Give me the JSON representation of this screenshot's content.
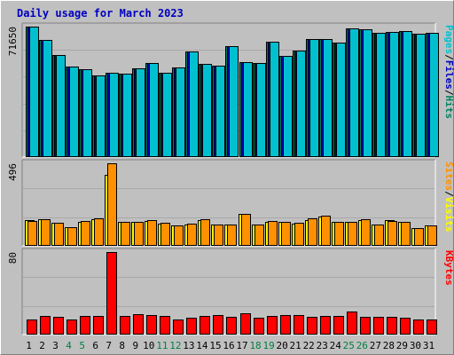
{
  "title": "Daily usage for March 2023",
  "colors": {
    "background": "#c0c0c0",
    "plot_background": "#c0c0c0",
    "title": "#0000c0",
    "pages": "#00c0d0",
    "files": "#0000c0",
    "hits": "#008060",
    "visits": "#ffff00",
    "sites": "#ff9000",
    "kbytes": "#ff0000",
    "day_weekday": "#000000",
    "day_weekend": "#008040",
    "separator": "#000000"
  },
  "chart_data": [
    {
      "type": "bar",
      "panel": "hits_files_pages",
      "max_label": "71650",
      "ylim": [
        0,
        71650
      ],
      "right_label": {
        "parts": [
          "Pages",
          "Files",
          "Hits"
        ],
        "separator": "/"
      },
      "categories": [
        "1",
        "2",
        "3",
        "4",
        "5",
        "6",
        "7",
        "8",
        "9",
        "10",
        "11",
        "12",
        "13",
        "14",
        "15",
        "16",
        "17",
        "18",
        "19",
        "20",
        "21",
        "22",
        "23",
        "24",
        "25",
        "26",
        "27",
        "28",
        "29",
        "30",
        "31"
      ],
      "weekend_days": [
        "4",
        "5",
        "11",
        "12",
        "18",
        "19",
        "25",
        "26"
      ],
      "series": [
        {
          "name": "Hits",
          "color": "#008060",
          "values": [
            71650,
            64100,
            56000,
            49800,
            48400,
            45000,
            46400,
            45700,
            48600,
            51600,
            46300,
            49400,
            58200,
            51200,
            50400,
            61100,
            52300,
            51900,
            63500,
            55700,
            58700,
            64600,
            64600,
            62800,
            70700,
            70100,
            68300,
            68500,
            69200,
            67900,
            68400
          ]
        },
        {
          "name": "Files",
          "color": "#0000c0",
          "values": [
            71650,
            64100,
            56000,
            49800,
            48400,
            45000,
            46400,
            45700,
            48600,
            51600,
            46300,
            49400,
            58200,
            51200,
            50400,
            61100,
            52300,
            51900,
            63500,
            55700,
            58700,
            64600,
            64600,
            62800,
            70700,
            70100,
            68300,
            68500,
            69200,
            67900,
            68400
          ]
        },
        {
          "name": "Pages",
          "color": "#00c0d0",
          "values": [
            71650,
            64100,
            56000,
            49800,
            48400,
            45000,
            46400,
            45700,
            48600,
            51600,
            46300,
            49400,
            58200,
            51200,
            50400,
            61100,
            52300,
            51900,
            63500,
            55700,
            58700,
            64600,
            64600,
            62800,
            70700,
            70100,
            68300,
            68500,
            69200,
            67900,
            68400
          ]
        }
      ]
    },
    {
      "type": "bar",
      "panel": "visits_sites",
      "max_label": "496",
      "ylim": [
        0,
        496
      ],
      "right_label": {
        "parts": [
          "Sites",
          "Visits"
        ],
        "separator": "/"
      },
      "categories": [
        "1",
        "2",
        "3",
        "4",
        "5",
        "6",
        "7",
        "8",
        "9",
        "10",
        "11",
        "12",
        "13",
        "14",
        "15",
        "16",
        "17",
        "18",
        "19",
        "20",
        "21",
        "22",
        "23",
        "24",
        "25",
        "26",
        "27",
        "28",
        "29",
        "30",
        "31"
      ],
      "series": [
        {
          "name": "Visits",
          "color": "#ffff00",
          "values": [
            155,
            160,
            140,
            110,
            145,
            160,
            426,
            145,
            145,
            150,
            135,
            120,
            128,
            155,
            128,
            128,
            190,
            128,
            145,
            145,
            135,
            155,
            175,
            145,
            145,
            155,
            128,
            155,
            145,
            105,
            125
          ]
        },
        {
          "name": "Sites",
          "color": "#ff9000",
          "values": [
            150,
            160,
            140,
            110,
            150,
            165,
            496,
            145,
            145,
            155,
            140,
            120,
            135,
            160,
            130,
            130,
            190,
            130,
            150,
            145,
            140,
            165,
            180,
            145,
            145,
            160,
            130,
            150,
            145,
            105,
            120
          ]
        }
      ]
    },
    {
      "type": "bar",
      "panel": "kbytes",
      "max_label": "80",
      "ylim": [
        0,
        80
      ],
      "right_label": {
        "parts": [
          "KBytes"
        ],
        "separator": ""
      },
      "categories": [
        "1",
        "2",
        "3",
        "4",
        "5",
        "6",
        "7",
        "8",
        "9",
        "10",
        "11",
        "12",
        "13",
        "14",
        "15",
        "16",
        "17",
        "18",
        "19",
        "20",
        "21",
        "22",
        "23",
        "24",
        "25",
        "26",
        "27",
        "28",
        "29",
        "30",
        "31"
      ],
      "series": [
        {
          "name": "KBytes",
          "color": "#ff0000",
          "values": [
            15,
            18,
            17,
            15,
            18,
            18,
            80,
            18,
            20,
            19,
            18,
            15,
            16,
            18,
            19,
            17,
            21,
            16,
            18,
            19,
            19,
            17,
            18,
            18,
            22,
            17,
            17,
            17,
            16,
            15,
            15
          ]
        }
      ]
    }
  ]
}
